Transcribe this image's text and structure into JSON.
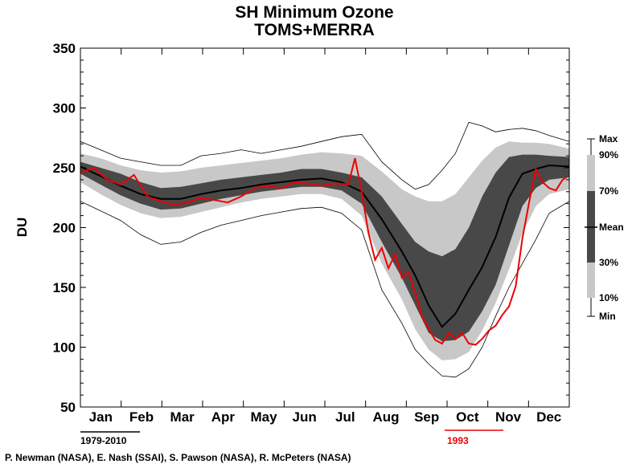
{
  "chart_data": {
    "type": "area",
    "title": "SH Minimum Ozone",
    "subtitle": "TOMS+MERRA",
    "ylabel": "DU",
    "ylim": [
      50,
      350
    ],
    "yticks": [
      50,
      100,
      150,
      200,
      250,
      300,
      350
    ],
    "xlim": [
      0,
      365
    ],
    "months": [
      "Jan",
      "Feb",
      "Mar",
      "Apr",
      "May",
      "Jun",
      "Jul",
      "Aug",
      "Sep",
      "Oct",
      "Nov",
      "Dec"
    ],
    "days": [
      0,
      15,
      30,
      45,
      60,
      75,
      90,
      105,
      120,
      135,
      150,
      165,
      180,
      195,
      210,
      225,
      240,
      250,
      260,
      270,
      280,
      290,
      300,
      310,
      320,
      330,
      340,
      350,
      365
    ],
    "series": [
      {
        "name": "Max",
        "style": "thin-black",
        "values": [
          272,
          265,
          258,
          255,
          252,
          252,
          260,
          262,
          265,
          262,
          265,
          268,
          272,
          276,
          278,
          255,
          240,
          232,
          236,
          248,
          262,
          288,
          285,
          280,
          282,
          283,
          281,
          277,
          272
        ]
      },
      {
        "name": "90%",
        "style": "band-light",
        "values": [
          262,
          258,
          252,
          248,
          246,
          247,
          250,
          252,
          254,
          256,
          258,
          261,
          263,
          262,
          260,
          247,
          232,
          226,
          222,
          222,
          228,
          242,
          256,
          267,
          272,
          271,
          271,
          270,
          266
        ]
      },
      {
        "name": "70%",
        "style": "band-dark",
        "values": [
          255,
          250,
          245,
          238,
          233,
          234,
          237,
          240,
          242,
          244,
          246,
          249,
          249,
          246,
          242,
          226,
          203,
          188,
          180,
          176,
          182,
          200,
          226,
          246,
          259,
          261,
          261,
          260,
          259
        ]
      },
      {
        "name": "Mean",
        "style": "thick-black",
        "values": [
          251,
          243,
          235,
          228,
          224,
          224,
          228,
          231,
          233,
          236,
          238,
          240,
          241,
          238,
          230,
          207,
          180,
          160,
          135,
          117,
          128,
          148,
          167,
          192,
          225,
          245,
          249,
          252,
          251
        ]
      },
      {
        "name": "30%",
        "style": "band-dark",
        "values": [
          245,
          236,
          227,
          220,
          215,
          216,
          220,
          224,
          227,
          230,
          232,
          234,
          234,
          231,
          220,
          188,
          158,
          135,
          112,
          105,
          106,
          113,
          130,
          152,
          185,
          218,
          233,
          240,
          242
        ]
      },
      {
        "name": "10%",
        "style": "band-light",
        "values": [
          238,
          228,
          219,
          212,
          208,
          209,
          213,
          217,
          221,
          224,
          226,
          228,
          228,
          224,
          210,
          170,
          140,
          115,
          98,
          89,
          90,
          96,
          114,
          137,
          165,
          195,
          218,
          228,
          232
        ]
      },
      {
        "name": "Min",
        "style": "thin-black",
        "values": [
          222,
          214,
          206,
          194,
          186,
          188,
          196,
          202,
          206,
          210,
          213,
          216,
          217,
          212,
          198,
          148,
          120,
          98,
          86,
          76,
          75,
          82,
          100,
          126,
          150,
          170,
          190,
          212,
          222
        ]
      }
    ],
    "highlight": {
      "name": "1993",
      "days": [
        0,
        10,
        20,
        30,
        40,
        50,
        60,
        70,
        80,
        90,
        100,
        110,
        120,
        130,
        140,
        150,
        160,
        170,
        180,
        190,
        200,
        205,
        210,
        215,
        220,
        225,
        230,
        235,
        240,
        245,
        250,
        255,
        260,
        265,
        270,
        275,
        280,
        285,
        290,
        295,
        300,
        305,
        310,
        315,
        320,
        325,
        330,
        335,
        340,
        345,
        350,
        355,
        360,
        363
      ],
      "values": [
        246,
        250,
        240,
        236,
        244,
        226,
        222,
        219,
        221,
        225,
        223,
        221,
        226,
        233,
        235,
        233,
        238,
        237,
        235,
        237,
        236,
        258,
        230,
        196,
        173,
        183,
        166,
        178,
        158,
        163,
        145,
        126,
        115,
        106,
        103,
        112,
        107,
        112,
        103,
        102,
        107,
        114,
        118,
        127,
        134,
        151,
        191,
        221,
        249,
        238,
        233,
        231,
        240,
        242
      ]
    },
    "legend": {
      "placement": "right",
      "labels": [
        "Max",
        "90%",
        "70%",
        "Mean",
        "30%",
        "10%",
        "Min"
      ]
    },
    "periods": [
      {
        "label": "1979-2010",
        "color": "#000000",
        "start_month": 0
      },
      {
        "label": "1993",
        "color": "#ee0000",
        "start_month": 9
      }
    ]
  },
  "credit": "P. Newman (NASA), E. Nash (SSAI), S. Pawson (NASA), R. McPeters (NASA)",
  "colors": {
    "light_band": "#c8c8c8",
    "dark_band": "#484848",
    "highlight": "#ee0000"
  }
}
